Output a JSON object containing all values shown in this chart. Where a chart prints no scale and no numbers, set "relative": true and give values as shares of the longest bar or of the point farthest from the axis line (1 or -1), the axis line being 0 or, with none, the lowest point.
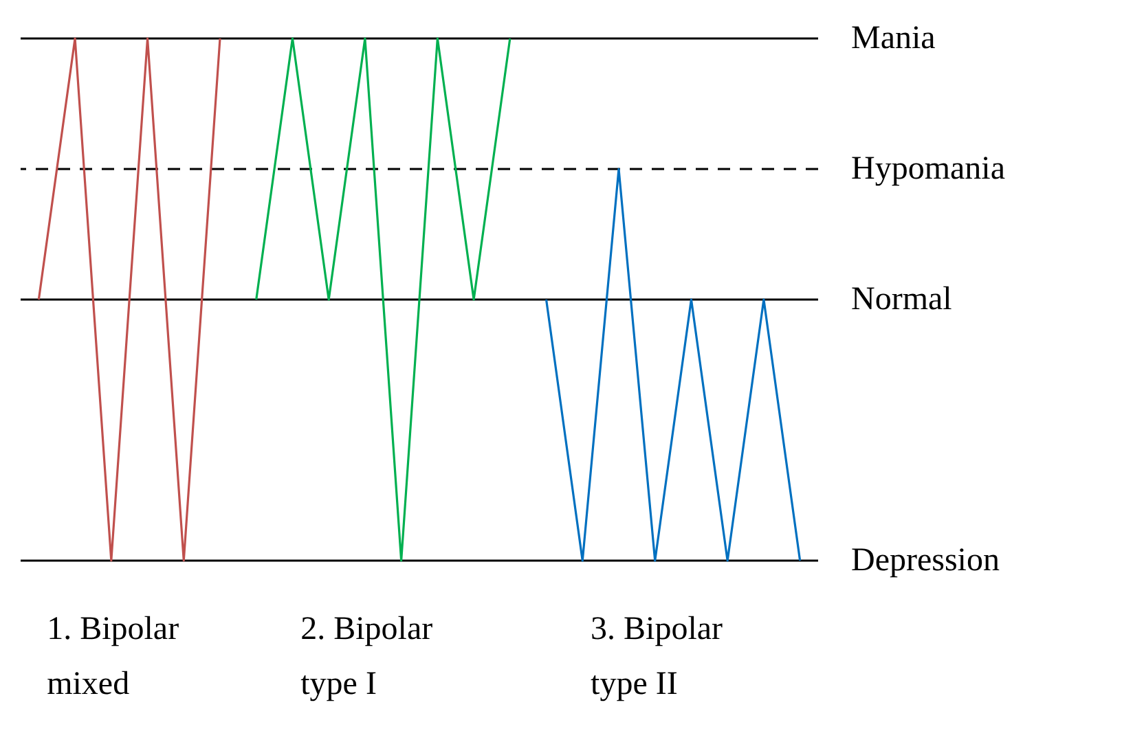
{
  "chart_data": {
    "type": "line",
    "relative": true,
    "tick_labels": false,
    "categories": [
      null,
      null,
      null,
      null,
      null,
      null,
      null,
      null,
      null,
      null,
      null,
      null,
      null,
      null,
      null,
      null,
      null,
      null,
      null,
      null,
      null,
      null
    ],
    "ref_lines": [
      {
        "axis": "y",
        "value": 1,
        "label": "Mania",
        "color": "#000000",
        "line_style": "solid"
      },
      {
        "axis": "y",
        "value": 0.5,
        "label": "Hypomania",
        "color": "#000000",
        "line_style": "dashed"
      },
      {
        "axis": "y",
        "value": 0,
        "label": "Normal",
        "color": "#000000",
        "line_style": "solid"
      },
      {
        "axis": "y",
        "value": -1,
        "label": "Depression",
        "color": "#000000",
        "line_style": "solid"
      }
    ],
    "series": [
      {
        "name": "1. Bipolar mixed",
        "color": "#c0504d",
        "values": [
          0,
          1,
          -1,
          1,
          -1,
          1,
          null,
          null,
          null,
          null,
          null,
          null,
          null,
          null,
          null,
          null,
          null,
          null,
          null,
          null,
          null,
          null
        ]
      },
      {
        "name": "2. Bipolar type I",
        "color": "#00b050",
        "values": [
          null,
          null,
          null,
          null,
          null,
          null,
          0,
          1,
          0,
          1,
          -1,
          1,
          0,
          1,
          null,
          null,
          null,
          null,
          null,
          null,
          null,
          null
        ]
      },
      {
        "name": "3. Bipolar type II",
        "color": "#0070c0",
        "values": [
          null,
          null,
          null,
          null,
          null,
          null,
          null,
          null,
          null,
          null,
          null,
          null,
          null,
          null,
          0,
          -1,
          0.5,
          -1,
          0,
          -1,
          0,
          -1
        ]
      }
    ]
  }
}
